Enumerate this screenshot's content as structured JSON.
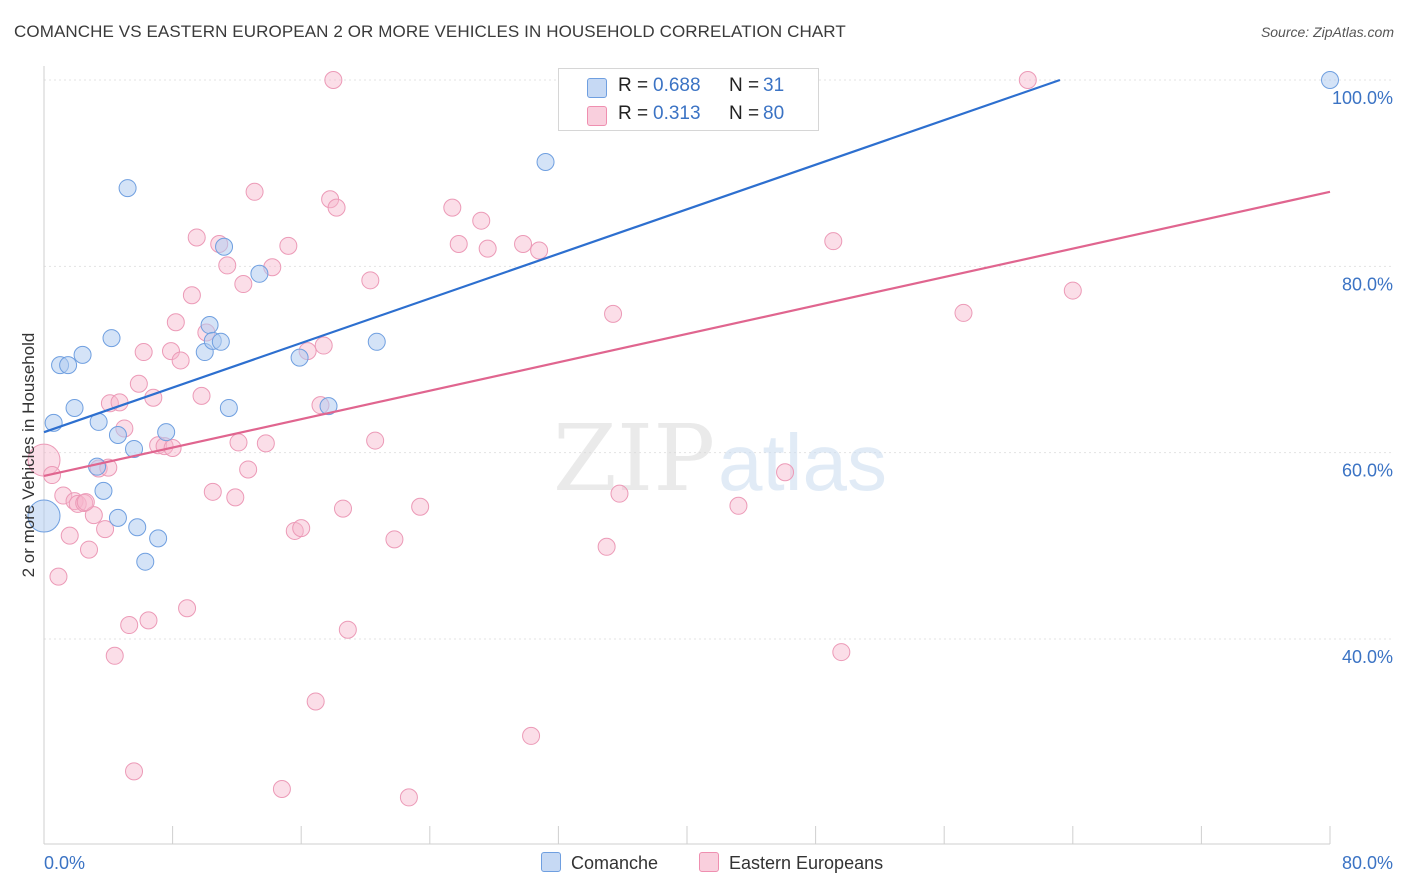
{
  "title": "COMANCHE VS EASTERN EUROPEAN 2 OR MORE VEHICLES IN HOUSEHOLD CORRELATION CHART",
  "source": "Source: ZipAtlas.com",
  "watermark": {
    "zip": "ZIP",
    "atlas": "atlas"
  },
  "legend": {
    "rows": [
      {
        "r_label": "R =",
        "r_value": "0.688",
        "n_label": "N =",
        "n_value": "31"
      },
      {
        "r_label": "R =",
        "r_value": "0.313",
        "n_label": "N =",
        "n_value": "80"
      }
    ]
  },
  "bottom_legend": {
    "comanche": "Comanche",
    "eastern": "Eastern Europeans"
  },
  "chart_data": {
    "type": "scatter",
    "title": "COMANCHE VS EASTERN EUROPEAN 2 OR MORE VEHICLES IN HOUSEHOLD CORRELATION CHART",
    "xlabel": "",
    "ylabel": "2 or more Vehicles in Household",
    "xlim": [
      0,
      80
    ],
    "ylim": [
      18,
      100
    ],
    "x_tick_labels": [
      "0.0%",
      "80.0%"
    ],
    "y_tick_labels": [
      "40.0%",
      "60.0%",
      "80.0%",
      "100.0%"
    ],
    "y_ticks": [
      40,
      60,
      80,
      100
    ],
    "grid": true,
    "legend_position": "top-center",
    "colors": {
      "comanche": "#6f9fe0",
      "comanche_line": "#2d6fcf",
      "eastern": "#ef8fb0",
      "eastern_line": "#e0658f",
      "tick_text": "#3b73c4"
    },
    "series": [
      {
        "name": "Comanche",
        "r": 0.688,
        "n": 31,
        "trend": [
          [
            0,
            62.2
          ],
          [
            63.2,
            100
          ]
        ],
        "points": [
          [
            0.0,
            53.2
          ],
          [
            0.6,
            63.2
          ],
          [
            1.0,
            69.4
          ],
          [
            1.5,
            69.4
          ],
          [
            1.9,
            64.8
          ],
          [
            2.4,
            70.5
          ],
          [
            3.4,
            63.3
          ],
          [
            3.3,
            58.5
          ],
          [
            3.7,
            55.9
          ],
          [
            4.2,
            72.3
          ],
          [
            4.6,
            53.0
          ],
          [
            4.6,
            61.9
          ],
          [
            5.2,
            88.4
          ],
          [
            5.6,
            60.4
          ],
          [
            5.8,
            52.0
          ],
          [
            6.3,
            48.3
          ],
          [
            7.1,
            50.8
          ],
          [
            7.6,
            62.2
          ],
          [
            10.0,
            70.8
          ],
          [
            10.3,
            73.7
          ],
          [
            10.5,
            72.0
          ],
          [
            11.0,
            71.9
          ],
          [
            11.2,
            82.1
          ],
          [
            11.5,
            64.8
          ],
          [
            13.4,
            79.2
          ],
          [
            15.9,
            70.2
          ],
          [
            17.7,
            65.0
          ],
          [
            20.7,
            71.9
          ],
          [
            31.2,
            91.2
          ],
          [
            32.8,
            100.0
          ],
          [
            80.0,
            100.0
          ]
        ]
      },
      {
        "name": "Eastern Europeans",
        "r": 0.313,
        "n": 80,
        "trend": [
          [
            0,
            57.5
          ],
          [
            80,
            88.0
          ]
        ],
        "points": [
          [
            0.0,
            59.2
          ],
          [
            0.5,
            57.6
          ],
          [
            0.9,
            46.7
          ],
          [
            1.2,
            55.4
          ],
          [
            1.6,
            51.1
          ],
          [
            1.9,
            54.8
          ],
          [
            2.1,
            54.5
          ],
          [
            2.5,
            54.6
          ],
          [
            2.8,
            49.6
          ],
          [
            3.1,
            53.3
          ],
          [
            3.4,
            58.3
          ],
          [
            3.8,
            51.8
          ],
          [
            4.1,
            65.3
          ],
          [
            4.4,
            38.2
          ],
          [
            4.7,
            65.4
          ],
          [
            5.0,
            62.6
          ],
          [
            5.3,
            41.5
          ],
          [
            5.6,
            25.8
          ],
          [
            5.9,
            67.4
          ],
          [
            6.2,
            70.8
          ],
          [
            6.5,
            42.0
          ],
          [
            6.8,
            65.9
          ],
          [
            7.1,
            60.8
          ],
          [
            7.5,
            60.7
          ],
          [
            7.9,
            70.9
          ],
          [
            8.2,
            74.0
          ],
          [
            8.5,
            69.9
          ],
          [
            8.9,
            43.3
          ],
          [
            9.2,
            76.9
          ],
          [
            9.5,
            83.1
          ],
          [
            9.8,
            66.1
          ],
          [
            10.1,
            72.9
          ],
          [
            10.5,
            55.8
          ],
          [
            10.9,
            82.4
          ],
          [
            11.4,
            80.1
          ],
          [
            11.9,
            55.2
          ],
          [
            12.1,
            61.1
          ],
          [
            12.4,
            78.1
          ],
          [
            12.7,
            58.2
          ],
          [
            13.1,
            88.0
          ],
          [
            13.8,
            61.0
          ],
          [
            14.2,
            79.9
          ],
          [
            14.8,
            23.9
          ],
          [
            15.2,
            82.2
          ],
          [
            15.6,
            51.6
          ],
          [
            16.0,
            51.9
          ],
          [
            16.4,
            70.9
          ],
          [
            16.9,
            33.3
          ],
          [
            17.2,
            65.1
          ],
          [
            17.4,
            71.5
          ],
          [
            17.8,
            87.2
          ],
          [
            18.2,
            86.3
          ],
          [
            18.6,
            54.0
          ],
          [
            18.9,
            41.0
          ],
          [
            18.0,
            100.0
          ],
          [
            20.3,
            78.5
          ],
          [
            20.6,
            61.3
          ],
          [
            21.8,
            50.7
          ],
          [
            22.7,
            23.0
          ],
          [
            23.4,
            54.2
          ],
          [
            25.4,
            86.3
          ],
          [
            25.8,
            82.4
          ],
          [
            27.2,
            84.9
          ],
          [
            27.6,
            81.9
          ],
          [
            29.8,
            82.4
          ],
          [
            30.8,
            81.7
          ],
          [
            30.3,
            29.6
          ],
          [
            35.0,
            49.9
          ],
          [
            35.4,
            74.9
          ],
          [
            35.8,
            55.6
          ],
          [
            43.2,
            54.3
          ],
          [
            46.1,
            57.9
          ],
          [
            49.1,
            82.7
          ],
          [
            49.6,
            38.6
          ],
          [
            57.2,
            75.0
          ],
          [
            61.2,
            100.0
          ],
          [
            64.0,
            77.4
          ],
          [
            2.6,
            54.7
          ],
          [
            8.0,
            60.5
          ],
          [
            4.0,
            58.4
          ]
        ]
      }
    ]
  }
}
